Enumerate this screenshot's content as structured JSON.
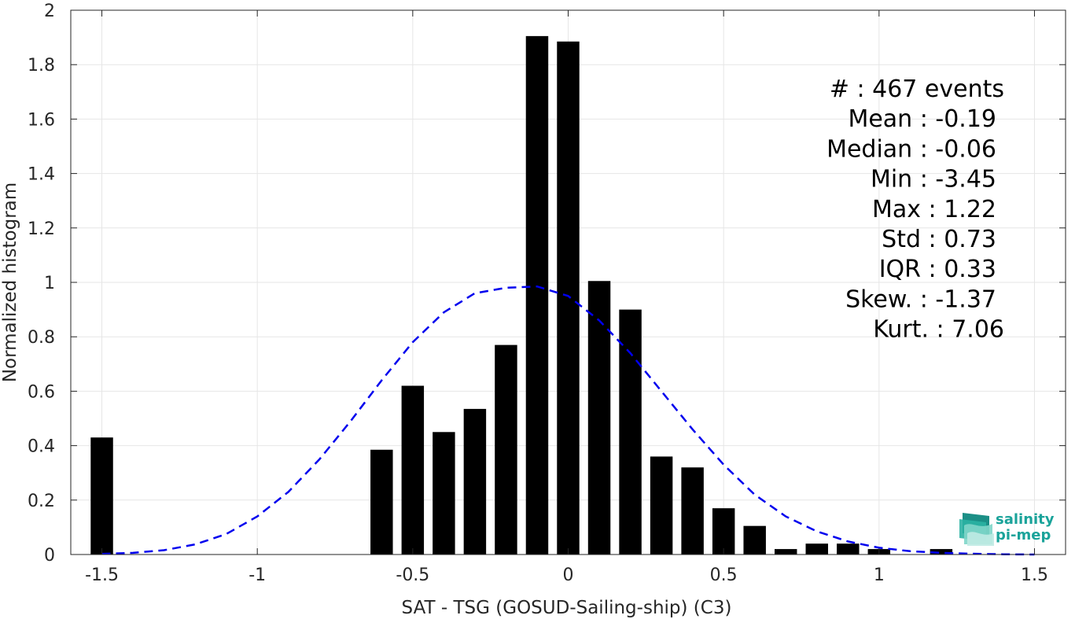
{
  "chart_data": {
    "type": "bar",
    "xlabel": "SAT - TSG (GOSUD-Sailing-ship) (C3)",
    "ylabel": "Normalized histogram",
    "xlim": [
      -1.6,
      1.6
    ],
    "ylim": [
      0,
      2
    ],
    "x_ticks": [
      "-1.5",
      "-1",
      "-0.5",
      "0",
      "0.5",
      "1",
      "1.5"
    ],
    "y_ticks": [
      "0",
      "0.2",
      "0.4",
      "0.6",
      "0.8",
      "1",
      "1.2",
      "1.4",
      "1.6",
      "1.8",
      "2"
    ],
    "grid": true,
    "bin_width": 0.1,
    "bar_color": "#000000",
    "bins": [
      {
        "x": -1.5,
        "y": 0.43
      },
      {
        "x": -0.6,
        "y": 0.385
      },
      {
        "x": -0.5,
        "y": 0.62
      },
      {
        "x": -0.4,
        "y": 0.45
      },
      {
        "x": -0.3,
        "y": 0.535
      },
      {
        "x": -0.2,
        "y": 0.77
      },
      {
        "x": -0.1,
        "y": 1.905
      },
      {
        "x": 0.0,
        "y": 1.885
      },
      {
        "x": 0.1,
        "y": 1.005
      },
      {
        "x": 0.2,
        "y": 0.9
      },
      {
        "x": 0.3,
        "y": 0.36
      },
      {
        "x": 0.4,
        "y": 0.32
      },
      {
        "x": 0.5,
        "y": 0.17
      },
      {
        "x": 0.6,
        "y": 0.105
      },
      {
        "x": 0.7,
        "y": 0.02
      },
      {
        "x": 0.8,
        "y": 0.04
      },
      {
        "x": 0.9,
        "y": 0.04
      },
      {
        "x": 1.0,
        "y": 0.02
      },
      {
        "x": 1.2,
        "y": 0.02
      }
    ],
    "fit_curve": {
      "style": "dashed",
      "color": "#0000ee",
      "points": [
        [
          -1.5,
          0.002
        ],
        [
          -1.4,
          0.006
        ],
        [
          -1.3,
          0.016
        ],
        [
          -1.2,
          0.037
        ],
        [
          -1.1,
          0.075
        ],
        [
          -1.0,
          0.14
        ],
        [
          -0.9,
          0.23
        ],
        [
          -0.8,
          0.35
        ],
        [
          -0.7,
          0.49
        ],
        [
          -0.6,
          0.64
        ],
        [
          -0.5,
          0.78
        ],
        [
          -0.4,
          0.89
        ],
        [
          -0.3,
          0.96
        ],
        [
          -0.2,
          0.98
        ],
        [
          -0.1,
          0.985
        ],
        [
          0.0,
          0.95
        ],
        [
          0.1,
          0.86
        ],
        [
          0.2,
          0.74
        ],
        [
          0.3,
          0.6
        ],
        [
          0.4,
          0.46
        ],
        [
          0.5,
          0.33
        ],
        [
          0.6,
          0.22
        ],
        [
          0.7,
          0.14
        ],
        [
          0.8,
          0.085
        ],
        [
          0.9,
          0.048
        ],
        [
          1.0,
          0.025
        ],
        [
          1.1,
          0.012
        ],
        [
          1.2,
          0.006
        ],
        [
          1.3,
          0.003
        ],
        [
          1.4,
          0.001
        ],
        [
          1.5,
          0.0
        ]
      ]
    },
    "stats": [
      {
        "label": "#  : 467 events"
      },
      {
        "label": "Mean : -0.19"
      },
      {
        "label": "Median : -0.06"
      },
      {
        "label": "Min : -3.45"
      },
      {
        "label": "Max : 1.22"
      },
      {
        "label": "Std : 0.73"
      },
      {
        "label": "IQR : 0.33"
      },
      {
        "label": "Skew. : -1.37"
      },
      {
        "label": "Kurt. : 7.06"
      }
    ]
  },
  "logo": {
    "line1": "salinity",
    "line2": "pi-mep",
    "icon": "wave-layers-icon"
  }
}
